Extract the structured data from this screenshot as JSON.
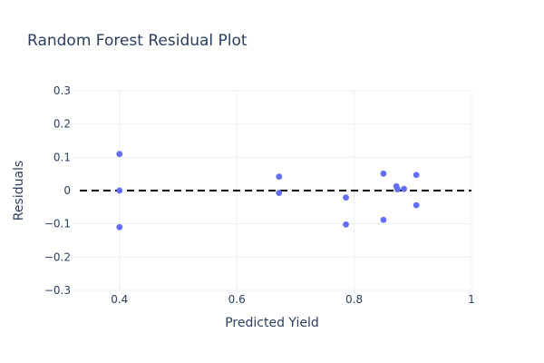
{
  "chart_data": {
    "type": "scatter",
    "title": "Random Forest Residual Plot",
    "xlabel": "Predicted Yield",
    "ylabel": "Residuals",
    "xlim": [
      0.32,
      1.0
    ],
    "ylim": [
      -0.3,
      0.3
    ],
    "xticks": [
      0.4,
      0.6,
      0.8,
      1.0
    ],
    "xtick_labels": [
      "0.4",
      "0.6",
      "0.8",
      "1"
    ],
    "yticks": [
      0.3,
      0.2,
      0.1,
      0,
      -0.1,
      -0.2,
      -0.3
    ],
    "ytick_labels": [
      "0.3",
      "0.2",
      "0.1",
      "0",
      "−0.1",
      "−0.2",
      "−0.3"
    ],
    "grid": true,
    "reference_line": {
      "y": 0,
      "style": "dashed",
      "color": "#000000"
    },
    "marker_color": "#636efa",
    "points": [
      {
        "x": 0.4,
        "y": 0.11
      },
      {
        "x": 0.4,
        "y": 0.0
      },
      {
        "x": 0.4,
        "y": -0.11
      },
      {
        "x": 0.672,
        "y": 0.042
      },
      {
        "x": 0.672,
        "y": -0.007
      },
      {
        "x": 0.786,
        "y": -0.021
      },
      {
        "x": 0.786,
        "y": -0.102
      },
      {
        "x": 0.85,
        "y": 0.051
      },
      {
        "x": 0.85,
        "y": -0.088
      },
      {
        "x": 0.872,
        "y": 0.013
      },
      {
        "x": 0.874,
        "y": 0.004
      },
      {
        "x": 0.885,
        "y": 0.005
      },
      {
        "x": 0.906,
        "y": 0.047
      },
      {
        "x": 0.906,
        "y": -0.044
      }
    ]
  }
}
